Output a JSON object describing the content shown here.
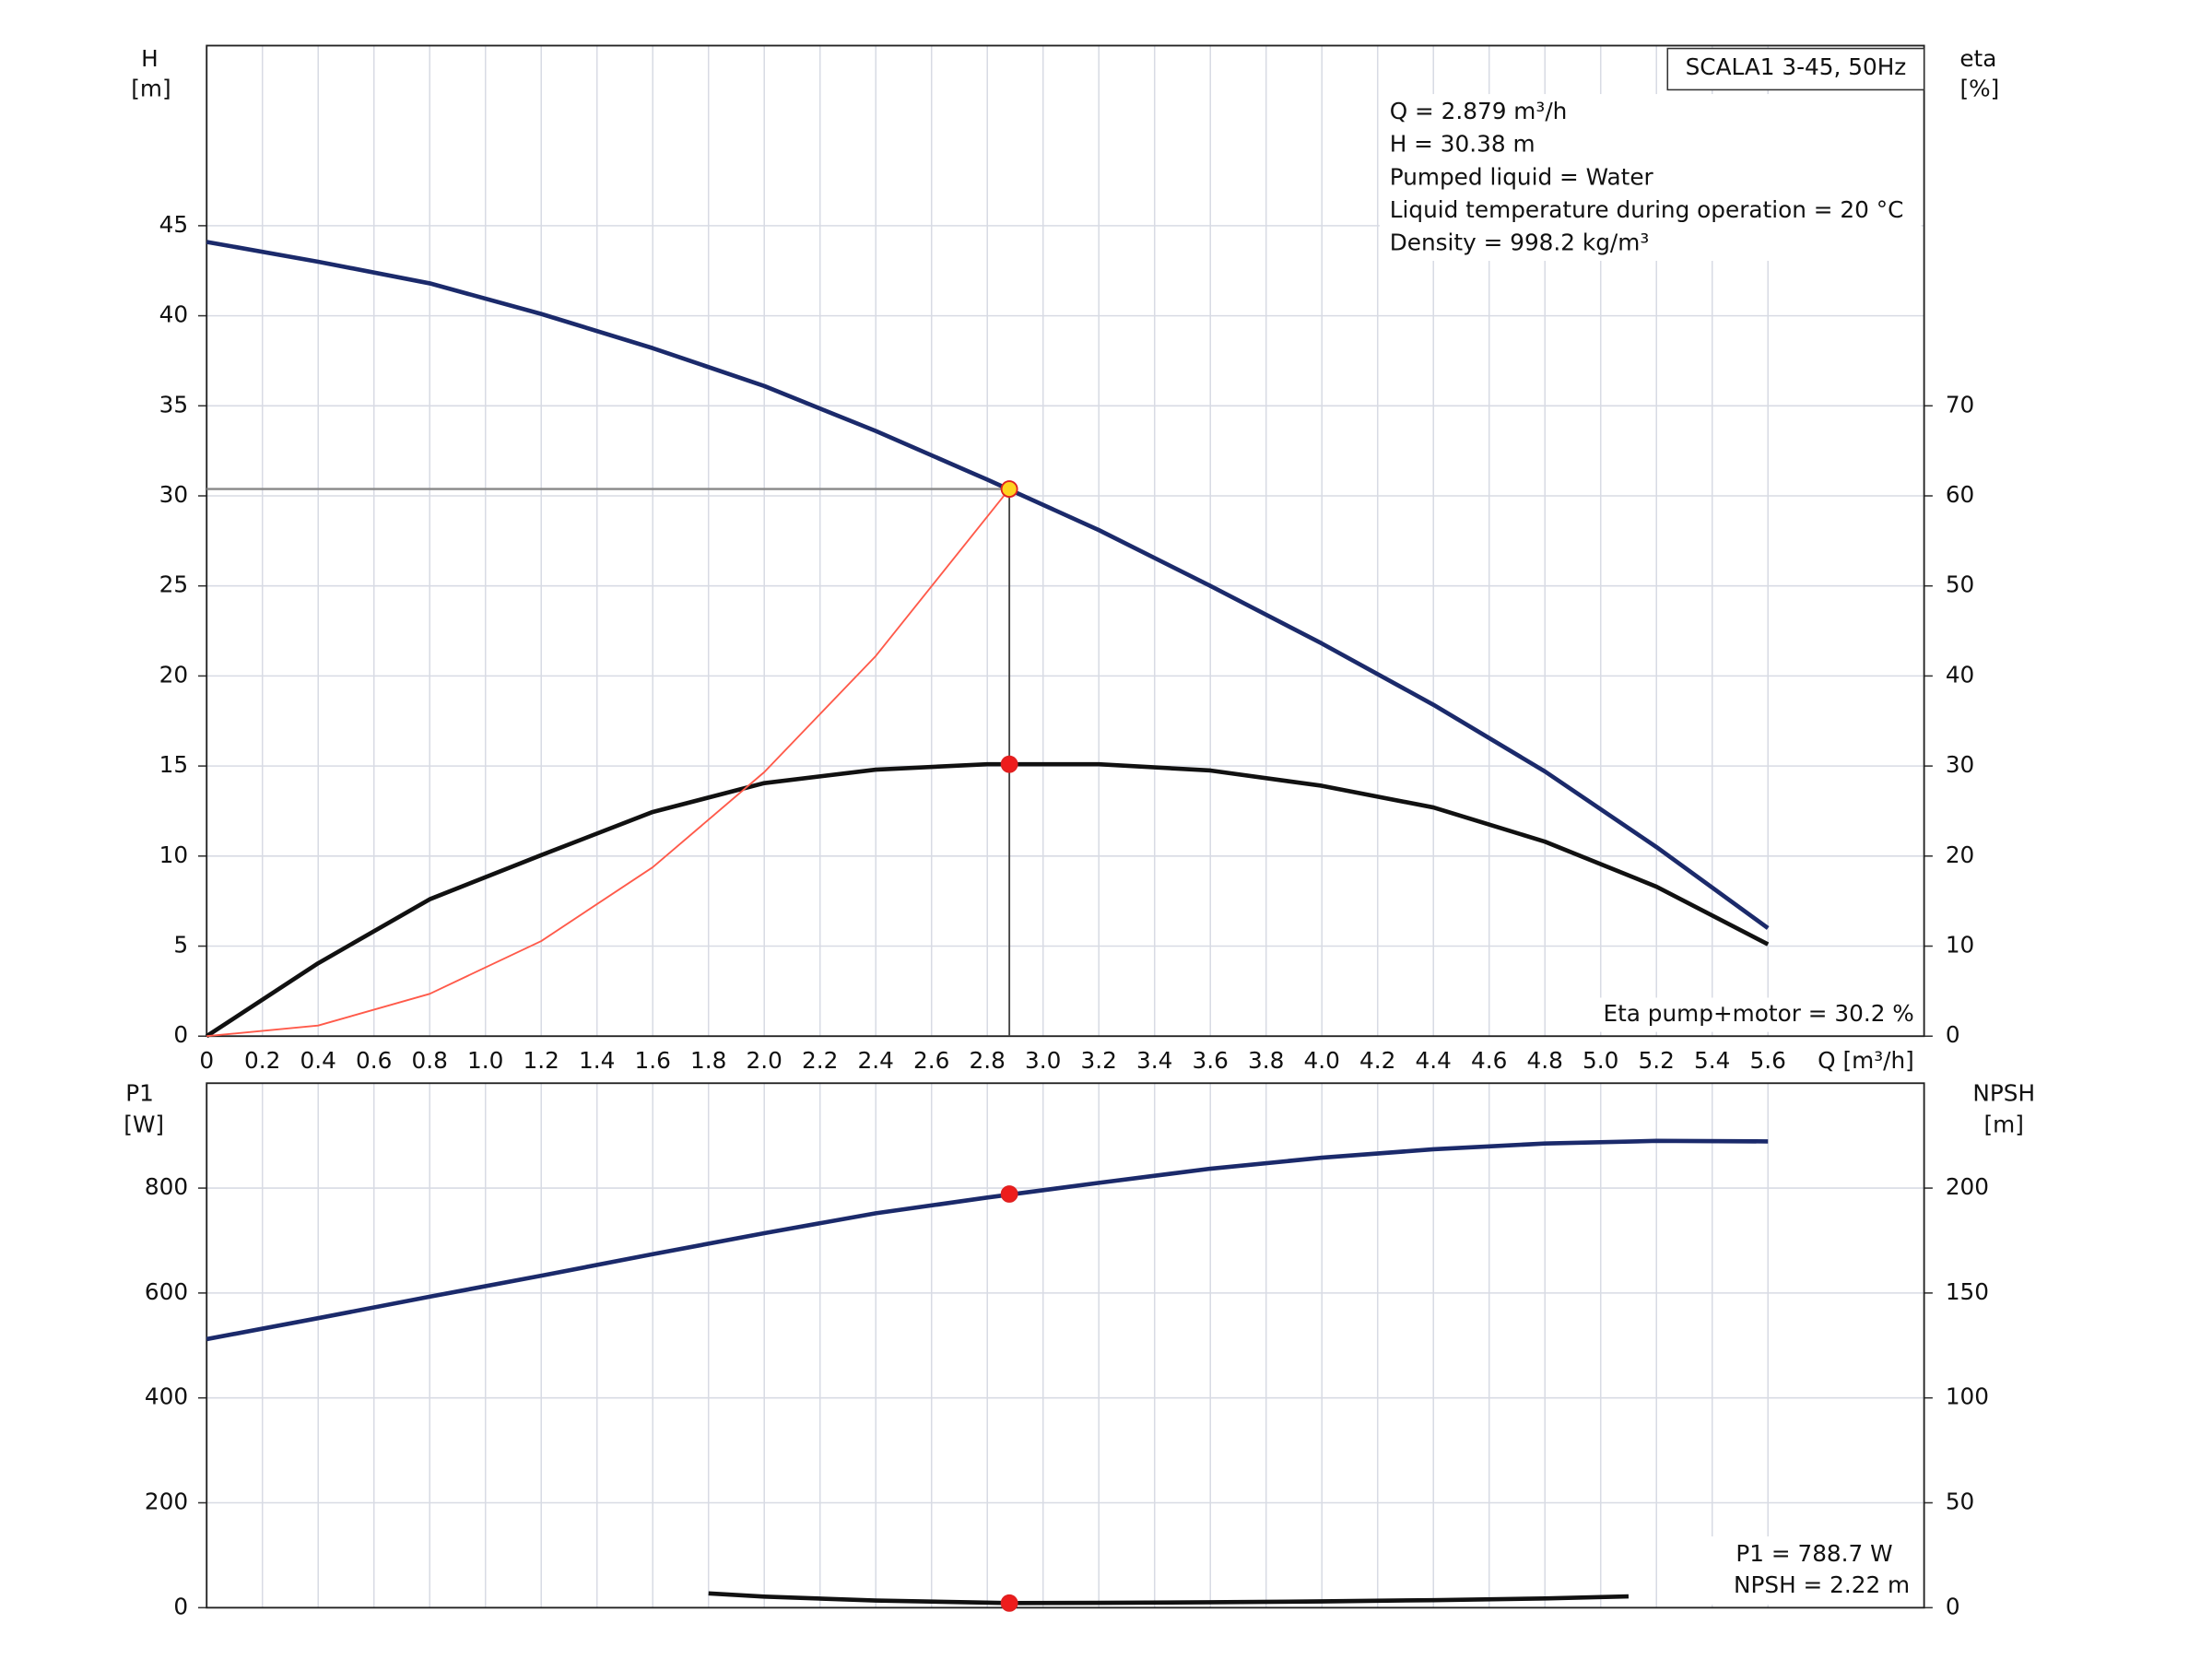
{
  "chart_data": [
    {
      "type": "line",
      "title": "SCALA1 3-45, 50Hz",
      "y_label": "H",
      "y_unit": "[m]",
      "y2_label": "eta",
      "y2_unit": "[%]",
      "x_label": "Q [m³/h]",
      "xlim": [
        0,
        6.16
      ],
      "xticks": [
        0,
        0.2,
        0.4,
        0.6,
        0.8,
        {
          "value": 1,
          "label": "1.0"
        },
        1.2,
        1.4,
        1.6,
        1.8,
        {
          "value": 2,
          "label": "2.0"
        },
        2.2,
        2.4,
        2.6,
        2.8,
        {
          "value": 3,
          "label": "3.0"
        },
        3.2,
        3.4,
        3.6,
        3.8,
        {
          "value": 4,
          "label": "4.0"
        },
        4.2,
        4.4,
        4.6,
        4.8,
        {
          "value": 5,
          "label": "5.0"
        },
        5.2,
        5.4,
        5.6
      ],
      "ylim": [
        0,
        55
      ],
      "yticks": [
        0,
        5,
        10,
        15,
        20,
        25,
        30,
        35,
        40,
        45
      ],
      "y2lim": [
        0,
        110
      ],
      "y2ticks": [
        0,
        10,
        20,
        30,
        40,
        50,
        60,
        70
      ],
      "grid": true,
      "series": [
        {
          "color": "#1b2a6b",
          "x": [
            0,
            0.4,
            0.8,
            1.2,
            1.6,
            2.0,
            2.4,
            2.8,
            3.2,
            3.6,
            4.0,
            4.4,
            4.8,
            5.2,
            5.6
          ],
          "values": [
            44.1,
            43.0,
            41.8,
            40.1,
            38.2,
            36.1,
            33.6,
            30.9,
            28.1,
            25.0,
            21.8,
            18.4,
            14.7,
            10.5,
            6.0
          ]
        },
        {
          "color": "#111111",
          "axis": "y2",
          "x": [
            0,
            0.4,
            0.8,
            1.2,
            1.6,
            2.0,
            2.4,
            2.8,
            3.2,
            3.6,
            4.0,
            4.4,
            4.8,
            5.2,
            5.6
          ],
          "values": [
            0,
            8.1,
            15.2,
            20.1,
            24.9,
            28.1,
            29.6,
            30.2,
            30.2,
            29.5,
            27.8,
            25.4,
            21.6,
            16.6,
            10.2
          ]
        },
        {
          "color": "#ff5a4a",
          "x": [
            0,
            0.4,
            0.8,
            1.2,
            1.6,
            2.0,
            2.4,
            2.879
          ],
          "values": [
            0,
            0.59,
            2.35,
            5.28,
            9.38,
            14.66,
            21.11,
            30.38
          ]
        }
      ],
      "markers": [
        {
          "x": 2.879,
          "y": 30.38,
          "color": "#ffd21f"
        },
        {
          "x": 2.879,
          "y": 30.2,
          "axis": "y2",
          "color": "#ee1c1c"
        }
      ],
      "annotations": [
        "Q = 2.879 m³/h",
        "H = 30.38 m",
        "Pumped liquid = Water",
        "Liquid temperature during operation = 20 °C",
        "Density = 998.2 kg/m³"
      ],
      "footnote": "Eta pump+motor = 30.2 %"
    },
    {
      "type": "line",
      "y_label": "P1",
      "y_unit": "[W]",
      "y2_label": "NPSH",
      "y2_unit": "[m]",
      "xlim": [
        0,
        6.16
      ],
      "ylim": [
        0,
        1000
      ],
      "yticks": [
        0,
        200,
        400,
        600,
        800
      ],
      "y2lim": [
        0,
        250
      ],
      "y2ticks": [
        0,
        50,
        100,
        150,
        200
      ],
      "grid": true,
      "series": [
        {
          "color": "#1b2a6b",
          "x": [
            0,
            0.4,
            0.8,
            1.2,
            1.6,
            2.0,
            2.4,
            2.8,
            3.2,
            3.6,
            4.0,
            4.4,
            4.8,
            5.2,
            5.6
          ],
          "values": [
            512,
            552,
            593,
            633,
            674,
            714,
            752,
            782,
            810,
            837,
            858,
            874,
            885,
            890,
            889
          ]
        },
        {
          "color": "#111111",
          "axis": "y2",
          "x": [
            1.8,
            2.0,
            2.4,
            2.879,
            3.2,
            3.6,
            4.0,
            4.4,
            4.8,
            5.1
          ],
          "values": [
            6.8,
            5.3,
            3.4,
            2.22,
            2.3,
            2.6,
            3.0,
            3.6,
            4.4,
            5.4
          ]
        }
      ],
      "markers": [
        {
          "x": 2.879,
          "y": 788.7,
          "color": "#ee1c1c"
        },
        {
          "x": 2.879,
          "y": 2.22,
          "axis": "y2",
          "color": "#ee1c1c"
        }
      ],
      "annotations": [
        "P1 = 788.7 W",
        "NPSH = 2.22 m"
      ]
    }
  ]
}
